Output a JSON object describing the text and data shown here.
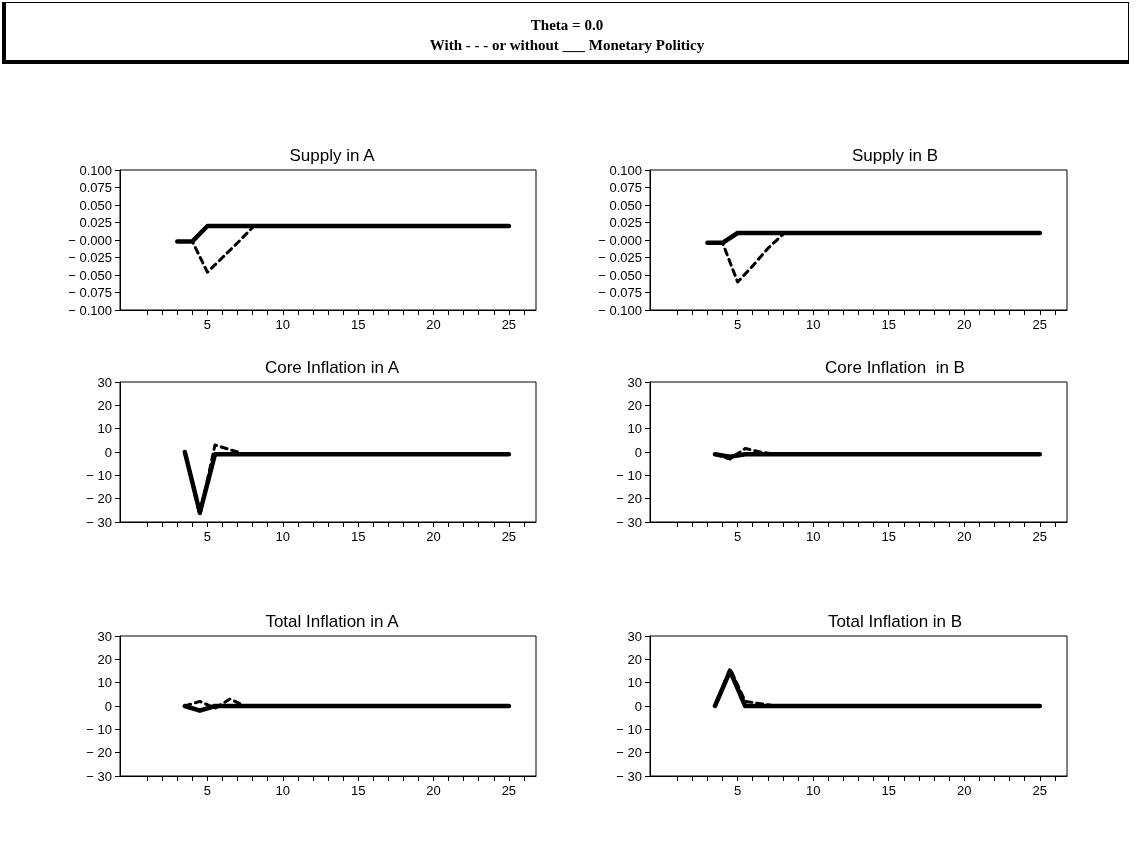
{
  "chart_data": [
    {
      "type": "other",
      "title": "Theta = 0.0",
      "subtitle": "With - - - or without ___ Monetary Politicy"
    },
    {
      "type": "line",
      "title": "Supply in A",
      "xlim": [
        -0.8,
        26.8
      ],
      "xticks": [
        {
          "value": 1,
          "label": null
        },
        {
          "value": 2,
          "label": null
        },
        {
          "value": 3,
          "label": null
        },
        {
          "value": 4,
          "label": null
        },
        5,
        {
          "value": 6,
          "label": null
        },
        {
          "value": 7,
          "label": null
        },
        {
          "value": 8,
          "label": null
        },
        {
          "value": 9,
          "label": null
        },
        10,
        {
          "value": 11,
          "label": null
        },
        {
          "value": 12,
          "label": null
        },
        {
          "value": 13,
          "label": null
        },
        {
          "value": 14,
          "label": null
        },
        15,
        {
          "value": 16,
          "label": null
        },
        {
          "value": 17,
          "label": null
        },
        {
          "value": 18,
          "label": null
        },
        {
          "value": 19,
          "label": null
        },
        20,
        {
          "value": 21,
          "label": null
        },
        {
          "value": 22,
          "label": null
        },
        {
          "value": 23,
          "label": null
        },
        {
          "value": 24,
          "label": null
        },
        25,
        {
          "value": 26,
          "label": null
        }
      ],
      "ylim": [
        -0.1,
        0.1
      ],
      "yticks": [
        {
          "value": -0.1,
          "label": "− 0.100"
        },
        {
          "value": -0.075,
          "label": "− 0.075"
        },
        {
          "value": -0.05,
          "label": "− 0.050"
        },
        {
          "value": -0.025,
          "label": "− 0.025"
        },
        {
          "value": 0,
          "label": "− 0.000"
        },
        {
          "value": 0.025,
          "label": "0.025"
        },
        {
          "value": 0.05,
          "label": "0.050"
        },
        {
          "value": 0.075,
          "label": "0.075"
        },
        {
          "value": 0.1,
          "label": "0.100"
        }
      ],
      "series": [
        {
          "color": "#000000",
          "line_style": "dashed",
          "x": [
            3,
            4,
            5,
            6,
            7,
            8
          ],
          "values": [
            -0.002,
            -0.002,
            -0.046,
            -0.025,
            -0.004,
            0.018
          ]
        },
        {
          "color": "#000000",
          "line_style": "solid",
          "x": [
            3,
            4,
            5,
            25
          ],
          "values": [
            -0.002,
            -0.002,
            0.02,
            0.02
          ]
        }
      ]
    },
    {
      "type": "line",
      "title": "Supply in B",
      "xlim": [
        -0.8,
        26.8
      ],
      "xticks": [
        {
          "value": 1,
          "label": null
        },
        {
          "value": 2,
          "label": null
        },
        {
          "value": 3,
          "label": null
        },
        {
          "value": 4,
          "label": null
        },
        5,
        {
          "value": 6,
          "label": null
        },
        {
          "value": 7,
          "label": null
        },
        {
          "value": 8,
          "label": null
        },
        {
          "value": 9,
          "label": null
        },
        10,
        {
          "value": 11,
          "label": null
        },
        {
          "value": 12,
          "label": null
        },
        {
          "value": 13,
          "label": null
        },
        {
          "value": 14,
          "label": null
        },
        15,
        {
          "value": 16,
          "label": null
        },
        {
          "value": 17,
          "label": null
        },
        {
          "value": 18,
          "label": null
        },
        {
          "value": 19,
          "label": null
        },
        20,
        {
          "value": 21,
          "label": null
        },
        {
          "value": 22,
          "label": null
        },
        {
          "value": 23,
          "label": null
        },
        {
          "value": 24,
          "label": null
        },
        25,
        {
          "value": 26,
          "label": null
        }
      ],
      "ylim": [
        -0.1,
        0.1
      ],
      "yticks": [
        {
          "value": -0.1,
          "label": "− 0.100"
        },
        {
          "value": -0.075,
          "label": "− 0.075"
        },
        {
          "value": -0.05,
          "label": "− 0.050"
        },
        {
          "value": -0.025,
          "label": "− 0.025"
        },
        {
          "value": 0,
          "label": "− 0.000"
        },
        {
          "value": 0.025,
          "label": "0.025"
        },
        {
          "value": 0.05,
          "label": "0.050"
        },
        {
          "value": 0.075,
          "label": "0.075"
        },
        {
          "value": 0.1,
          "label": "0.100"
        }
      ],
      "series": [
        {
          "color": "#000000",
          "line_style": "dashed",
          "x": [
            3,
            4,
            5,
            6,
            7,
            8
          ],
          "values": [
            -0.004,
            -0.004,
            -0.06,
            -0.037,
            -0.012,
            0.008
          ]
        },
        {
          "color": "#000000",
          "line_style": "solid",
          "x": [
            3,
            4,
            5,
            25
          ],
          "values": [
            -0.004,
            -0.004,
            0.01,
            0.01
          ]
        }
      ]
    },
    {
      "type": "line",
      "title": "Core Inflation in A",
      "xlim": [
        -0.8,
        26.8
      ],
      "xticks": [
        {
          "value": 1,
          "label": null
        },
        {
          "value": 2,
          "label": null
        },
        {
          "value": 3,
          "label": null
        },
        {
          "value": 4,
          "label": null
        },
        5,
        {
          "value": 6,
          "label": null
        },
        {
          "value": 7,
          "label": null
        },
        {
          "value": 8,
          "label": null
        },
        {
          "value": 9,
          "label": null
        },
        10,
        {
          "value": 11,
          "label": null
        },
        {
          "value": 12,
          "label": null
        },
        {
          "value": 13,
          "label": null
        },
        {
          "value": 14,
          "label": null
        },
        15,
        {
          "value": 16,
          "label": null
        },
        {
          "value": 17,
          "label": null
        },
        {
          "value": 18,
          "label": null
        },
        {
          "value": 19,
          "label": null
        },
        20,
        {
          "value": 21,
          "label": null
        },
        {
          "value": 22,
          "label": null
        },
        {
          "value": 23,
          "label": null
        },
        {
          "value": 24,
          "label": null
        },
        25,
        {
          "value": 26,
          "label": null
        }
      ],
      "ylim": [
        -30,
        30
      ],
      "yticks": [
        {
          "value": -30,
          "label": "− 30"
        },
        {
          "value": -20,
          "label": "− 20"
        },
        {
          "value": -10,
          "label": "− 10"
        },
        0,
        10,
        20,
        30
      ],
      "series": [
        {
          "color": "#000000",
          "line_style": "dashed",
          "x": [
            3.5,
            4.5,
            5.5,
            6.5,
            7.5
          ],
          "values": [
            0,
            -27,
            3,
            1,
            -1
          ]
        },
        {
          "color": "#000000",
          "line_style": "solid",
          "x": [
            3.5,
            4.5,
            5.5,
            25
          ],
          "values": [
            0,
            -26,
            -1,
            -1
          ]
        }
      ]
    },
    {
      "type": "line",
      "title": "Core Inflation  in B",
      "xlim": [
        -0.8,
        26.8
      ],
      "xticks": [
        {
          "value": 1,
          "label": null
        },
        {
          "value": 2,
          "label": null
        },
        {
          "value": 3,
          "label": null
        },
        {
          "value": 4,
          "label": null
        },
        5,
        {
          "value": 6,
          "label": null
        },
        {
          "value": 7,
          "label": null
        },
        {
          "value": 8,
          "label": null
        },
        {
          "value": 9,
          "label": null
        },
        10,
        {
          "value": 11,
          "label": null
        },
        {
          "value": 12,
          "label": null
        },
        {
          "value": 13,
          "label": null
        },
        {
          "value": 14,
          "label": null
        },
        15,
        {
          "value": 16,
          "label": null
        },
        {
          "value": 17,
          "label": null
        },
        {
          "value": 18,
          "label": null
        },
        {
          "value": 19,
          "label": null
        },
        20,
        {
          "value": 21,
          "label": null
        },
        {
          "value": 22,
          "label": null
        },
        {
          "value": 23,
          "label": null
        },
        {
          "value": 24,
          "label": null
        },
        25,
        {
          "value": 26,
          "label": null
        }
      ],
      "ylim": [
        -30,
        30
      ],
      "yticks": [
        {
          "value": -30,
          "label": "− 30"
        },
        {
          "value": -20,
          "label": "− 20"
        },
        {
          "value": -10,
          "label": "− 10"
        },
        0,
        10,
        20,
        30
      ],
      "series": [
        {
          "color": "#000000",
          "line_style": "dashed",
          "x": [
            3.5,
            4.5,
            5.5,
            6.5,
            7.5
          ],
          "values": [
            -1,
            -3,
            1.5,
            0,
            -1
          ]
        },
        {
          "color": "#000000",
          "line_style": "solid",
          "x": [
            3.5,
            4.5,
            5.5,
            25
          ],
          "values": [
            -1,
            -2,
            -1,
            -1
          ]
        }
      ]
    },
    {
      "type": "line",
      "title": "Total Inflation in A",
      "xlim": [
        -0.8,
        26.8
      ],
      "xticks": [
        {
          "value": 1,
          "label": null
        },
        {
          "value": 2,
          "label": null
        },
        {
          "value": 3,
          "label": null
        },
        {
          "value": 4,
          "label": null
        },
        5,
        {
          "value": 6,
          "label": null
        },
        {
          "value": 7,
          "label": null
        },
        {
          "value": 8,
          "label": null
        },
        {
          "value": 9,
          "label": null
        },
        10,
        {
          "value": 11,
          "label": null
        },
        {
          "value": 12,
          "label": null
        },
        {
          "value": 13,
          "label": null
        },
        {
          "value": 14,
          "label": null
        },
        15,
        {
          "value": 16,
          "label": null
        },
        {
          "value": 17,
          "label": null
        },
        {
          "value": 18,
          "label": null
        },
        {
          "value": 19,
          "label": null
        },
        20,
        {
          "value": 21,
          "label": null
        },
        {
          "value": 22,
          "label": null
        },
        {
          "value": 23,
          "label": null
        },
        {
          "value": 24,
          "label": null
        },
        25,
        {
          "value": 26,
          "label": null
        }
      ],
      "ylim": [
        -30,
        30
      ],
      "yticks": [
        {
          "value": -30,
          "label": "− 30"
        },
        {
          "value": -20,
          "label": "− 20"
        },
        {
          "value": -10,
          "label": "− 10"
        },
        0,
        10,
        20,
        30
      ],
      "series": [
        {
          "color": "#000000",
          "line_style": "dashed",
          "x": [
            3.5,
            4.5,
            5.5,
            6.5,
            7.5
          ],
          "values": [
            0,
            2,
            -1,
            3,
            0
          ]
        },
        {
          "color": "#000000",
          "line_style": "solid",
          "x": [
            3.5,
            4.5,
            5.5,
            25
          ],
          "values": [
            0,
            -2,
            0,
            0
          ]
        }
      ]
    },
    {
      "type": "line",
      "title": "Total Inflation in B",
      "xlim": [
        -0.8,
        26.8
      ],
      "xticks": [
        {
          "value": 1,
          "label": null
        },
        {
          "value": 2,
          "label": null
        },
        {
          "value": 3,
          "label": null
        },
        {
          "value": 4,
          "label": null
        },
        5,
        {
          "value": 6,
          "label": null
        },
        {
          "value": 7,
          "label": null
        },
        {
          "value": 8,
          "label": null
        },
        {
          "value": 9,
          "label": null
        },
        10,
        {
          "value": 11,
          "label": null
        },
        {
          "value": 12,
          "label": null
        },
        {
          "value": 13,
          "label": null
        },
        {
          "value": 14,
          "label": null
        },
        15,
        {
          "value": 16,
          "label": null
        },
        {
          "value": 17,
          "label": null
        },
        {
          "value": 18,
          "label": null
        },
        {
          "value": 19,
          "label": null
        },
        20,
        {
          "value": 21,
          "label": null
        },
        {
          "value": 22,
          "label": null
        },
        {
          "value": 23,
          "label": null
        },
        {
          "value": 24,
          "label": null
        },
        25,
        {
          "value": 26,
          "label": null
        }
      ],
      "ylim": [
        -30,
        30
      ],
      "yticks": [
        {
          "value": -30,
          "label": "− 30"
        },
        {
          "value": -20,
          "label": "− 20"
        },
        {
          "value": -10,
          "label": "− 10"
        },
        0,
        10,
        20,
        30
      ],
      "series": [
        {
          "color": "#000000",
          "line_style": "dashed",
          "x": [
            3.5,
            4.5,
            5.5,
            6.5,
            7.5
          ],
          "values": [
            0,
            16,
            2,
            1,
            0
          ]
        },
        {
          "color": "#000000",
          "line_style": "solid",
          "x": [
            3.5,
            4.5,
            5.5,
            25
          ],
          "values": [
            0,
            15,
            0,
            0
          ]
        }
      ]
    }
  ]
}
